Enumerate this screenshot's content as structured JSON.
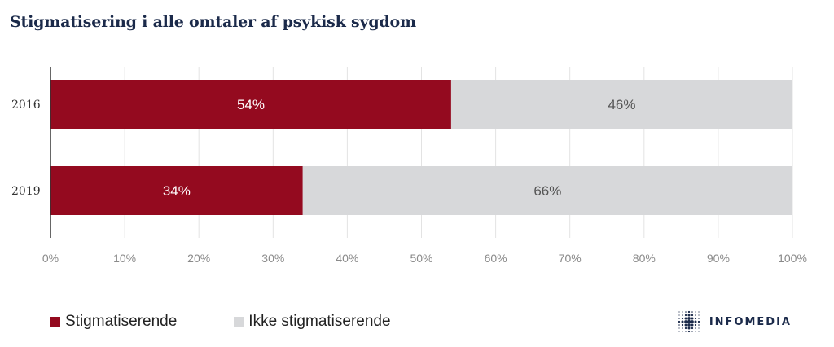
{
  "title": "Stigmatisering i alle omtaler af psykisk sygdom",
  "chart_data": {
    "type": "bar",
    "orientation": "horizontal",
    "stacked": true,
    "categories": [
      "2016",
      "2019"
    ],
    "series": [
      {
        "name": "Stigmatiserende",
        "values": [
          54,
          34
        ],
        "labels": [
          "54%",
          "34%"
        ],
        "color": "#940a1f"
      },
      {
        "name": "Ikke stigmatiserende",
        "values": [
          46,
          66
        ],
        "labels": [
          "46%",
          "66%"
        ],
        "color": "#d7d8da"
      }
    ],
    "xlim": [
      0,
      100
    ],
    "xticks": [
      "0%",
      "10%",
      "20%",
      "30%",
      "40%",
      "50%",
      "60%",
      "70%",
      "80%",
      "90%",
      "100%"
    ],
    "grid": true,
    "legend_position": "bottom-left"
  },
  "logo": {
    "text": "INFOMEDIA",
    "icon": "infomedia-dot-logo-icon",
    "color": "#1b2a4a"
  }
}
